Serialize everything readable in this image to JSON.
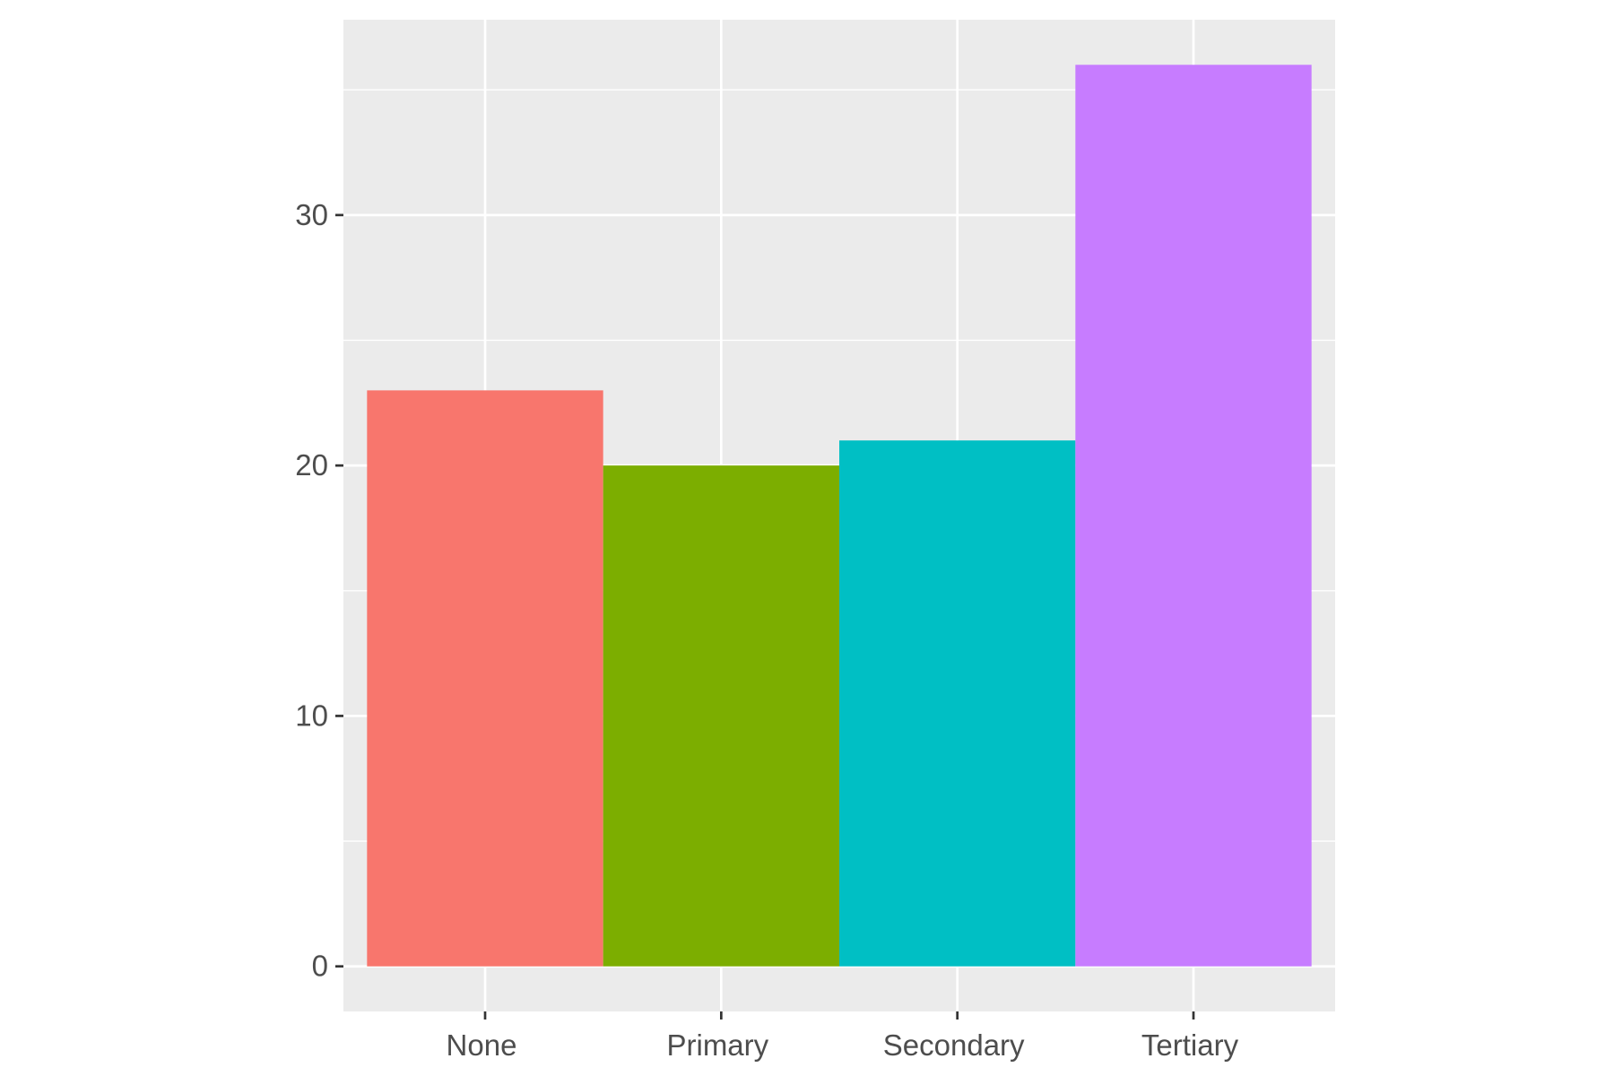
{
  "chart_data": {
    "type": "bar",
    "categories": [
      "None",
      "Primary",
      "Secondary",
      "Tertiary"
    ],
    "values": [
      23,
      20,
      21,
      36
    ],
    "colors": [
      "#F8766D",
      "#7CAE00",
      "#00BFC4",
      "#C77CFF"
    ],
    "ylim": [
      -1.8,
      37.8
    ],
    "yticks": [
      0,
      10,
      20,
      30
    ],
    "xlabel": "",
    "ylabel": "",
    "title": "",
    "grid": true,
    "legend": "none",
    "panel_background": "#EBEBEB",
    "grid_color": "#FFFFFF"
  }
}
